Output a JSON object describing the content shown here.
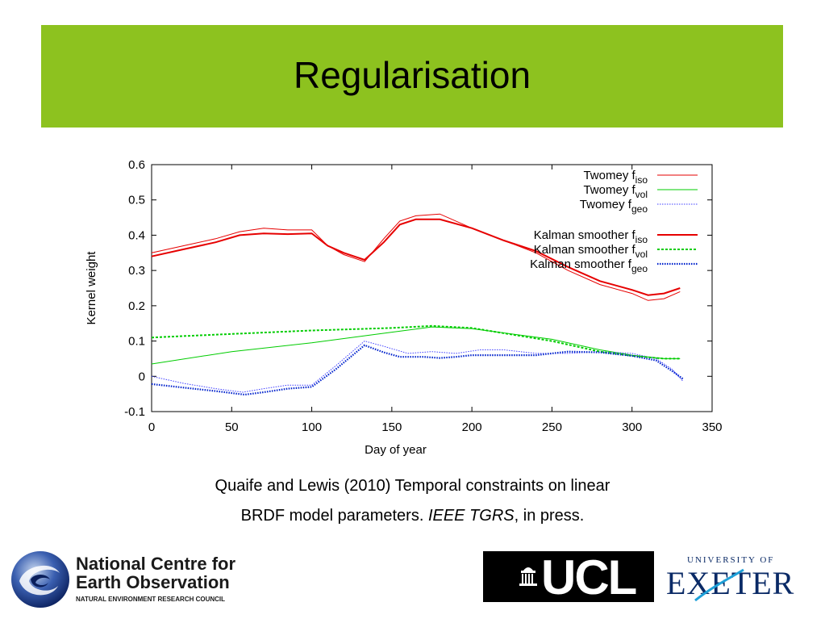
{
  "slide": {
    "title": "Regularisation",
    "accent_color": "#8dc21f"
  },
  "caption": {
    "line1": "Quaife and Lewis (2010) Temporal constraints on linear",
    "line2_plain": "BRDF model parameters. ",
    "line2_italic": "IEEE TGRS",
    "line2_tail": ", in press."
  },
  "logos": {
    "ncoe": {
      "line1": "National Centre for",
      "line2": "Earth Observation",
      "line3": "NATURAL ENVIRONMENT RESEARCH COUNCIL"
    },
    "ucl": {
      "text": "UCL"
    },
    "exeter": {
      "top": "UNIVERSITY OF",
      "main": "EXETER"
    }
  },
  "chart_data": {
    "type": "line",
    "xlabel": "Day of year",
    "ylabel": "Kernel weight",
    "xlim": [
      0,
      350
    ],
    "ylim": [
      -0.1,
      0.6
    ],
    "xticks": [
      0,
      50,
      100,
      150,
      200,
      250,
      300,
      350
    ],
    "yticks": [
      -0.1,
      0,
      0.1,
      0.2,
      0.3,
      0.4,
      0.5,
      0.6
    ],
    "grid": false,
    "legend_position": "top-right",
    "series": [
      {
        "name": "Twomey f_iso",
        "label": "Twomey  f",
        "sub": "iso",
        "color": "#e60000",
        "style": "thin",
        "x": [
          0,
          20,
          40,
          55,
          70,
          85,
          100,
          110,
          120,
          133,
          145,
          155,
          165,
          180,
          200,
          220,
          240,
          260,
          280,
          300,
          310,
          320,
          330
        ],
        "y": [
          0.35,
          0.37,
          0.39,
          0.41,
          0.42,
          0.415,
          0.415,
          0.37,
          0.345,
          0.325,
          0.39,
          0.44,
          0.455,
          0.46,
          0.42,
          0.385,
          0.35,
          0.3,
          0.26,
          0.235,
          0.215,
          0.22,
          0.24
        ]
      },
      {
        "name": "Twomey f_vol",
        "label": "Twomey  f",
        "sub": "vol",
        "color": "#00cc00",
        "style": "thin",
        "x": [
          0,
          50,
          100,
          150,
          175,
          200,
          250,
          280,
          300,
          320,
          330
        ],
        "y": [
          0.035,
          0.07,
          0.095,
          0.125,
          0.14,
          0.135,
          0.105,
          0.075,
          0.06,
          0.05,
          0.05
        ]
      },
      {
        "name": "Twomey f_geo",
        "label": "Twomey f",
        "sub": "geo",
        "color": "#4040ff",
        "style": "thin-dotted",
        "x": [
          0,
          20,
          40,
          57,
          70,
          85,
          100,
          115,
          133,
          145,
          160,
          175,
          190,
          205,
          220,
          240,
          260,
          280,
          300,
          315,
          325,
          332
        ],
        "y": [
          0.0,
          -0.02,
          -0.035,
          -0.045,
          -0.035,
          -0.025,
          -0.025,
          0.03,
          0.1,
          0.085,
          0.065,
          0.07,
          0.065,
          0.075,
          0.075,
          0.065,
          0.065,
          0.07,
          0.065,
          0.05,
          0.02,
          -0.015
        ]
      },
      {
        "name": "Kalman smoother f_iso",
        "label": "Kalman smoother  f",
        "sub": "iso",
        "color": "#e60000",
        "style": "thick",
        "x": [
          0,
          20,
          40,
          55,
          70,
          85,
          100,
          110,
          120,
          133,
          145,
          155,
          165,
          180,
          200,
          220,
          240,
          260,
          280,
          300,
          310,
          320,
          330
        ],
        "y": [
          0.34,
          0.36,
          0.38,
          0.4,
          0.405,
          0.403,
          0.405,
          0.37,
          0.35,
          0.33,
          0.38,
          0.43,
          0.445,
          0.445,
          0.42,
          0.385,
          0.355,
          0.31,
          0.27,
          0.245,
          0.23,
          0.235,
          0.25
        ]
      },
      {
        "name": "Kalman smoother f_vol",
        "label": "Kalman smoother  f",
        "sub": "vol",
        "color": "#00cc00",
        "style": "thick-dashed",
        "x": [
          0,
          50,
          100,
          150,
          175,
          200,
          250,
          280,
          300,
          320,
          330
        ],
        "y": [
          0.11,
          0.12,
          0.13,
          0.137,
          0.143,
          0.137,
          0.1,
          0.07,
          0.058,
          0.05,
          0.05
        ]
      },
      {
        "name": "Kalman smoother f_geo",
        "label": "Kalman smoother f",
        "sub": "geo",
        "color": "#0022cc",
        "style": "thick-dotted",
        "x": [
          0,
          20,
          40,
          58,
          70,
          85,
          100,
          115,
          133,
          145,
          155,
          170,
          180,
          190,
          200,
          220,
          240,
          260,
          280,
          300,
          315,
          325,
          332
        ],
        "y": [
          -0.022,
          -0.032,
          -0.042,
          -0.052,
          -0.045,
          -0.035,
          -0.03,
          0.02,
          0.088,
          0.068,
          0.055,
          0.055,
          0.052,
          0.055,
          0.06,
          0.06,
          0.06,
          0.07,
          0.068,
          0.058,
          0.045,
          0.015,
          -0.008
        ]
      }
    ]
  }
}
